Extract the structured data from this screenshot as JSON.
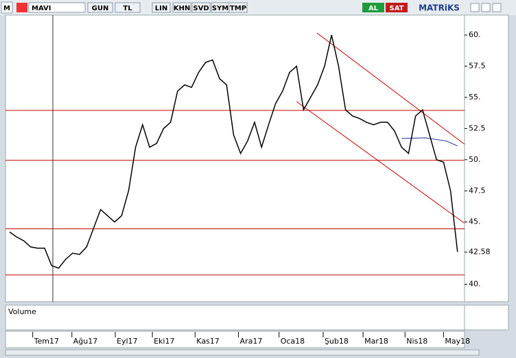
{
  "toolbar": {
    "logo": "M",
    "symbol": "MAVI",
    "buttons": [
      "GUN",
      "TL",
      "LIN",
      "KHN",
      "SVD",
      "SYM",
      "TMP"
    ],
    "buy": "AL",
    "sell": "SAT",
    "brand": "MATRiKS"
  },
  "volume_label": "Volume",
  "chart_data": {
    "type": "line",
    "x": [
      0,
      1,
      2,
      3,
      4,
      5,
      6,
      7,
      8,
      9,
      10,
      11,
      12,
      13,
      14,
      15,
      16,
      17,
      18,
      19,
      20,
      21,
      22,
      23,
      24,
      25,
      26,
      27,
      28,
      29,
      30,
      31,
      32,
      33,
      34,
      35,
      36,
      37,
      38,
      39,
      40,
      41,
      42,
      43,
      44,
      45,
      46,
      47,
      48,
      49,
      50,
      51,
      52,
      53,
      54,
      55,
      56,
      57,
      58,
      59,
      60,
      61,
      62,
      63,
      64
    ],
    "series": [
      {
        "color": "#000000",
        "values": [
          44.2,
          43.8,
          43.5,
          43.0,
          42.9,
          42.9,
          41.5,
          41.3,
          42.0,
          42.5,
          42.4,
          43.0,
          44.5,
          46.0,
          45.5,
          45.0,
          45.5,
          47.5,
          51.0,
          52.8,
          51.0,
          51.3,
          52.5,
          53.0,
          55.5,
          56.0,
          55.8,
          57.0,
          57.8,
          58.0,
          56.5,
          56.0,
          52.0,
          50.5,
          51.5,
          53.0,
          51.0,
          52.8,
          54.5,
          55.5,
          57.0,
          57.5,
          54.0,
          55.0,
          56.0,
          57.5,
          60.0,
          57.5,
          54.0,
          53.5,
          53.3,
          53.0,
          52.8,
          53.0,
          53.0,
          52.3,
          51.0,
          50.5,
          53.5,
          54.0,
          52.0,
          50.0,
          49.8,
          47.5,
          42.6
        ]
      }
    ],
    "xlim": [
      0,
      65
    ],
    "xticks": [
      {
        "value": 3.3,
        "label": "Tem17"
      },
      {
        "value": 8.9,
        "label": "Ağu17"
      },
      {
        "value": 15.1,
        "label": "Eyl17"
      },
      {
        "value": 20.4,
        "label": "Eki17"
      },
      {
        "value": 26.5,
        "label": "Kas17"
      },
      {
        "value": 32.7,
        "label": "Ara17"
      },
      {
        "value": 38.5,
        "label": "Oca18"
      },
      {
        "value": 44.8,
        "label": "Şub18"
      },
      {
        "value": 50.5,
        "label": "Mar18"
      },
      {
        "value": 56.5,
        "label": "Nis18"
      },
      {
        "value": 62.0,
        "label": "May18"
      }
    ],
    "ylim": [
      38.6,
      61.6
    ],
    "yticks": [
      {
        "value": 40,
        "label": "40."
      },
      42.58,
      {
        "value": 45,
        "label": "45."
      },
      47.5,
      {
        "value": 50,
        "label": "50."
      },
      52.5,
      {
        "value": 55,
        "label": "55."
      },
      57.5,
      {
        "value": 60,
        "label": "60."
      }
    ],
    "hlines": [
      53.95,
      49.95,
      44.45,
      40.75
    ],
    "hline_color": "#c00000",
    "trendlines": [
      {
        "x": [
          43.9,
          65
        ],
        "y": [
          60.17,
          51.24
        ],
        "color": "#c00000"
      },
      {
        "x": [
          41.0,
          65
        ],
        "y": [
          54.66,
          44.9
        ],
        "color": "#c00000"
      },
      {
        "x": [
          56.0,
          59.4,
          62.4,
          64.0
        ],
        "y": [
          51.7,
          51.75,
          51.5,
          51.1
        ],
        "color": "#1a2a9a"
      }
    ]
  }
}
